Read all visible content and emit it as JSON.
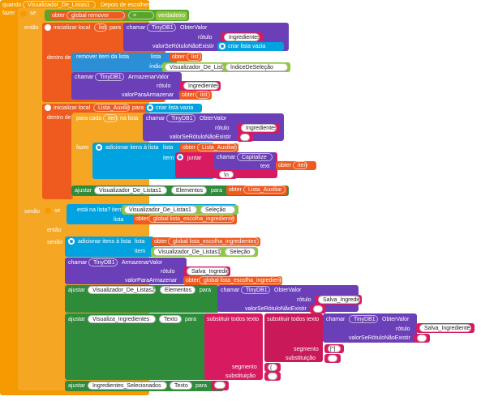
{
  "event": {
    "quando": "quando",
    "component": "Visualizador_De_Listas1",
    "event_name": "Depois de escolher",
    "fazer": "fazer"
  },
  "if1": {
    "se": "se",
    "obter": "obter",
    "var": "global remover",
    "op": "=",
    "value": "verdadeiro",
    "entao": "então"
  },
  "local": {
    "init_label": "inicializar local",
    "name": "list",
    "para": "para",
    "dentro_de": "dentro de"
  },
  "tinydb_get1": {
    "chamar": "chamar",
    "component": "TinyDB1",
    "method": "ObterValor",
    "rotulo": "rótulo",
    "tag": "Ingredientes",
    "vazio": "valorSeRótuloNãoExistir",
    "criar": "criar lista vazia"
  },
  "remove": {
    "label": "remover item da lista",
    "lista": "lista",
    "obter": "obter",
    "var": "list",
    "indice": "índice",
    "comp": "Visualizador_De_Listas1",
    "prop": "ÍndiceDeSeleção"
  },
  "tinydb_store1": {
    "chamar": "chamar",
    "component": "TinyDB1",
    "method": "ArmazenarValor",
    "rotulo": "rótulo",
    "tag": "Ingredientes",
    "valor": "valorParaArmazenar",
    "obter": "obter",
    "var": "list"
  },
  "local2": {
    "init_label": "inicializar local",
    "name": "Lista_Auxiliar",
    "para": "para",
    "criar": "criar lista vazia",
    "dentro_de": "dentro de"
  },
  "foreach": {
    "para_cada": "para cada",
    "item": "item",
    "na_lista": "na lista",
    "fazer": "fazer"
  },
  "tinydb_get2": {
    "chamar": "chamar",
    "component": "TinyDB1",
    "method": "ObterValor",
    "rotulo": "rótulo",
    "tag": "Ingredientes",
    "vazio": "valorSeRótuloNãoExistir",
    "empty": " "
  },
  "additem1": {
    "label": "adicionar itens à lista",
    "lista": "lista",
    "obter": "obter",
    "var": "Lista_Auxiliar",
    "item": "item",
    "juntar": "juntar",
    "chamar": "chamar",
    "cap": "Capitalize",
    "text": "text",
    "obter2": "obter",
    "var2": "item",
    "sep": "\\n"
  },
  "set1": {
    "ajustar": "ajustar",
    "comp": "Visualizador_De_Listas1",
    "prop": "Elementos",
    "para": "para",
    "obter": "obter",
    "var": "Lista_Auxiliar"
  },
  "senao": {
    "senao": "senão",
    "se": "se",
    "label": "está na lista?",
    "item": "item",
    "lista": "lista",
    "comp": "Visualizador_De_Listas1",
    "prop": "Seleção",
    "obter": "obter",
    "var": "global lista_escolha_ingredientes",
    "entao": "então",
    "senao2": "senão"
  },
  "additem2": {
    "label": "adicionar itens à lista",
    "lista": "lista",
    "obter": "obter",
    "var": "global lista_escolha_ingredientes",
    "item": "item",
    "comp": "Visualizador_De_Listas1",
    "prop": "Seleção"
  },
  "tinydb_store2": {
    "chamar": "chamar",
    "component": "TinyDB1",
    "method": "ArmazenarValor",
    "rotulo": "rótulo",
    "tag": "Salva_Ingredientes",
    "valor": "valorParaArmazenar",
    "obter": "obter",
    "var": "global lista_escolha_ingredientes"
  },
  "set2": {
    "ajustar": "ajustar",
    "comp": "Visualizador_De_Listas2",
    "prop": "Elementos",
    "para": "para",
    "chamar": "chamar",
    "component": "TinyDB1",
    "method": "ObterValor",
    "rotulo": "rótulo",
    "tag": "Salva_Ingredientes",
    "vazio": "valorSeRótuloNãoExistir",
    "empty": " "
  },
  "set3": {
    "ajustar": "ajustar",
    "comp": "Visualiza_Ingredientes",
    "prop": "Texto",
    "para": "para",
    "sub1": "substituir todos texto",
    "sub2": "substituir todos texto",
    "chamar": "chamar",
    "component": "TinyDB1",
    "method": "ObterValor",
    "rotulo": "rótulo",
    "tag": "Salva_Ingredientes",
    "vazio": "valorSeRótuloNãoExistir",
    "empty": " ",
    "segmento": "segmento",
    "seg_val": "[\"]",
    "substituicao": "substituição",
    "subst_val": " ",
    "segmento2": "segmento",
    "seg_val2": "(",
    "substituicao2": "substituição",
    "subst_val2": " "
  },
  "set4": {
    "ajustar": "ajustar",
    "comp": "Ingredientes_Selecionados",
    "prop": "Texto",
    "para": "para",
    "empty": " "
  }
}
